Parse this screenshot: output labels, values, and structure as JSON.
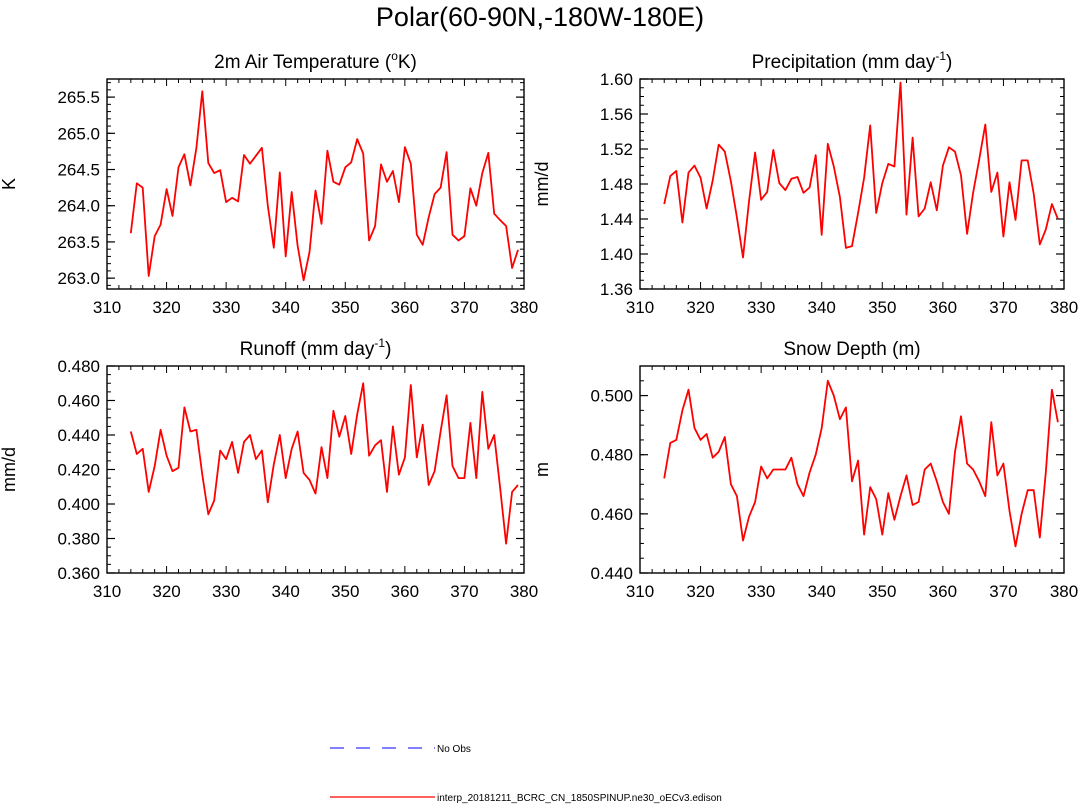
{
  "title": "Polar(60-90N,-180W-180E)",
  "colors": {
    "model_line": "#ff0000",
    "obs_line": "#3333ff",
    "axis": "#000000"
  },
  "legend": [
    {
      "label": "No Obs",
      "color": "#3333ff",
      "style": "dashed"
    },
    {
      "label": "interp_20181211_BCRC_CN_1850SPINUP.ne30_oECv3.edison",
      "color": "#ff0000",
      "style": "solid"
    }
  ],
  "chart_data": [
    {
      "type": "line",
      "title": "2m Air Temperature (",
      "title_sup": "o",
      "title_tail": "K)",
      "ylabel": "K",
      "xlim": [
        310,
        380
      ],
      "ylim": [
        262.85,
        265.75
      ],
      "xticks": [
        310,
        320,
        330,
        340,
        350,
        360,
        370,
        380
      ],
      "yticks": [
        "263.0",
        "263.5",
        "264.0",
        "264.5",
        "265.0",
        "265.5"
      ],
      "yminor": 0.1,
      "x": [
        314,
        315,
        316,
        317,
        318,
        319,
        320,
        321,
        322,
        323,
        324,
        325,
        326,
        327,
        328,
        329,
        330,
        331,
        332,
        333,
        334,
        335,
        336,
        337,
        338,
        339,
        340,
        341,
        342,
        343,
        344,
        345,
        346,
        347,
        348,
        349,
        350,
        351,
        352,
        353,
        354,
        355,
        356,
        357,
        358,
        359,
        360,
        361,
        362,
        363,
        364,
        365,
        366,
        367,
        368,
        369,
        370,
        371,
        372,
        373,
        374,
        375,
        376,
        377,
        378,
        379
      ],
      "series": [
        {
          "values": [
            263.62,
            264.31,
            264.25,
            263.03,
            263.58,
            263.74,
            264.23,
            263.86,
            264.53,
            264.71,
            264.28,
            264.8,
            265.58,
            264.59,
            264.45,
            264.49,
            264.05,
            264.11,
            264.06,
            264.7,
            264.58,
            264.69,
            264.8,
            264.0,
            263.42,
            264.46,
            263.3,
            264.19,
            263.45,
            262.97,
            263.36,
            264.21,
            263.75,
            264.76,
            264.33,
            264.29,
            264.53,
            264.6,
            264.92,
            264.72,
            263.52,
            263.72,
            264.57,
            264.33,
            264.48,
            264.05,
            264.81,
            264.58,
            263.6,
            263.46,
            263.84,
            264.16,
            264.25,
            264.74,
            263.6,
            263.52,
            263.58,
            264.24,
            264.0,
            264.45,
            264.73,
            263.89,
            263.8,
            263.72,
            263.14,
            263.39
          ]
        }
      ]
    },
    {
      "type": "line",
      "title": "Precipitation (mm day",
      "title_sup": "-1",
      "title_tail": ")",
      "ylabel": "mm/d",
      "xlim": [
        310,
        380
      ],
      "ylim": [
        1.36,
        1.6
      ],
      "xticks": [
        310,
        320,
        330,
        340,
        350,
        360,
        370,
        380
      ],
      "yticks": [
        "1.36",
        "1.40",
        "1.44",
        "1.48",
        "1.52",
        "1.56",
        "1.60"
      ],
      "yminor": 0.01,
      "x": [
        314,
        315,
        316,
        317,
        318,
        319,
        320,
        321,
        322,
        323,
        324,
        325,
        326,
        327,
        328,
        329,
        330,
        331,
        332,
        333,
        334,
        335,
        336,
        337,
        338,
        339,
        340,
        341,
        342,
        343,
        344,
        345,
        346,
        347,
        348,
        349,
        350,
        351,
        352,
        353,
        354,
        355,
        356,
        357,
        358,
        359,
        360,
        361,
        362,
        363,
        364,
        365,
        366,
        367,
        368,
        369,
        370,
        371,
        372,
        373,
        374,
        375,
        376,
        377,
        378,
        379
      ],
      "series": [
        {
          "values": [
            1.457,
            1.489,
            1.495,
            1.436,
            1.493,
            1.501,
            1.487,
            1.452,
            1.484,
            1.525,
            1.517,
            1.483,
            1.442,
            1.396,
            1.46,
            1.516,
            1.462,
            1.471,
            1.519,
            1.481,
            1.473,
            1.486,
            1.488,
            1.47,
            1.476,
            1.513,
            1.422,
            1.526,
            1.5,
            1.465,
            1.407,
            1.409,
            1.447,
            1.487,
            1.547,
            1.447,
            1.481,
            1.503,
            1.5,
            1.596,
            1.445,
            1.533,
            1.443,
            1.452,
            1.482,
            1.45,
            1.501,
            1.522,
            1.517,
            1.49,
            1.423,
            1.47,
            1.508,
            1.548,
            1.471,
            1.493,
            1.42,
            1.482,
            1.439,
            1.507,
            1.507,
            1.469,
            1.411,
            1.428,
            1.457,
            1.44
          ]
        }
      ]
    },
    {
      "type": "line",
      "title": "Runoff (mm day",
      "title_sup": "-1",
      "title_tail": ")",
      "ylabel": "mm/d",
      "xlim": [
        310,
        380
      ],
      "ylim": [
        0.36,
        0.48
      ],
      "xticks": [
        310,
        320,
        330,
        340,
        350,
        360,
        370,
        380
      ],
      "yticks": [
        "0.360",
        "0.380",
        "0.400",
        "0.420",
        "0.440",
        "0.460",
        "0.480"
      ],
      "yminor": 0.005,
      "x": [
        314,
        315,
        316,
        317,
        318,
        319,
        320,
        321,
        322,
        323,
        324,
        325,
        326,
        327,
        328,
        329,
        330,
        331,
        332,
        333,
        334,
        335,
        336,
        337,
        338,
        339,
        340,
        341,
        342,
        343,
        344,
        345,
        346,
        347,
        348,
        349,
        350,
        351,
        352,
        353,
        354,
        355,
        356,
        357,
        358,
        359,
        360,
        361,
        362,
        363,
        364,
        365,
        366,
        367,
        368,
        369,
        370,
        371,
        372,
        373,
        374,
        375,
        376,
        377,
        378,
        379
      ],
      "series": [
        {
          "values": [
            0.442,
            0.429,
            0.432,
            0.407,
            0.422,
            0.443,
            0.428,
            0.419,
            0.421,
            0.456,
            0.442,
            0.443,
            0.417,
            0.394,
            0.402,
            0.431,
            0.426,
            0.436,
            0.418,
            0.436,
            0.44,
            0.426,
            0.431,
            0.401,
            0.423,
            0.44,
            0.415,
            0.432,
            0.442,
            0.418,
            0.414,
            0.406,
            0.433,
            0.415,
            0.454,
            0.439,
            0.451,
            0.429,
            0.452,
            0.47,
            0.428,
            0.434,
            0.437,
            0.407,
            0.445,
            0.417,
            0.427,
            0.469,
            0.427,
            0.446,
            0.411,
            0.419,
            0.442,
            0.463,
            0.422,
            0.415,
            0.415,
            0.447,
            0.415,
            0.465,
            0.432,
            0.44,
            0.409,
            0.377,
            0.407,
            0.411
          ]
        }
      ]
    },
    {
      "type": "line",
      "title": "Snow Depth (m)",
      "ylabel": "m",
      "xlim": [
        310,
        380
      ],
      "ylim": [
        0.44,
        0.51
      ],
      "xticks": [
        310,
        320,
        330,
        340,
        350,
        360,
        370,
        380
      ],
      "yticks": [
        "0.440",
        "0.460",
        "0.480",
        "0.500"
      ],
      "yminor": 0.005,
      "x": [
        314,
        315,
        316,
        317,
        318,
        319,
        320,
        321,
        322,
        323,
        324,
        325,
        326,
        327,
        328,
        329,
        330,
        331,
        332,
        333,
        334,
        335,
        336,
        337,
        338,
        339,
        340,
        341,
        342,
        343,
        344,
        345,
        346,
        347,
        348,
        349,
        350,
        351,
        352,
        353,
        354,
        355,
        356,
        357,
        358,
        359,
        360,
        361,
        362,
        363,
        364,
        365,
        366,
        367,
        368,
        369,
        370,
        371,
        372,
        373,
        374,
        375,
        376,
        377,
        378,
        379
      ],
      "series": [
        {
          "values": [
            0.472,
            0.484,
            0.485,
            0.495,
            0.502,
            0.489,
            0.485,
            0.487,
            0.479,
            0.481,
            0.486,
            0.47,
            0.466,
            0.451,
            0.459,
            0.464,
            0.476,
            0.472,
            0.475,
            0.475,
            0.475,
            0.479,
            0.47,
            0.466,
            0.474,
            0.48,
            0.489,
            0.505,
            0.5,
            0.492,
            0.496,
            0.471,
            0.478,
            0.453,
            0.469,
            0.465,
            0.453,
            0.467,
            0.458,
            0.466,
            0.473,
            0.463,
            0.464,
            0.475,
            0.477,
            0.471,
            0.464,
            0.46,
            0.481,
            0.493,
            0.477,
            0.475,
            0.471,
            0.466,
            0.491,
            0.473,
            0.477,
            0.461,
            0.449,
            0.46,
            0.468,
            0.468,
            0.452,
            0.474,
            0.502,
            0.491
          ]
        }
      ]
    }
  ]
}
